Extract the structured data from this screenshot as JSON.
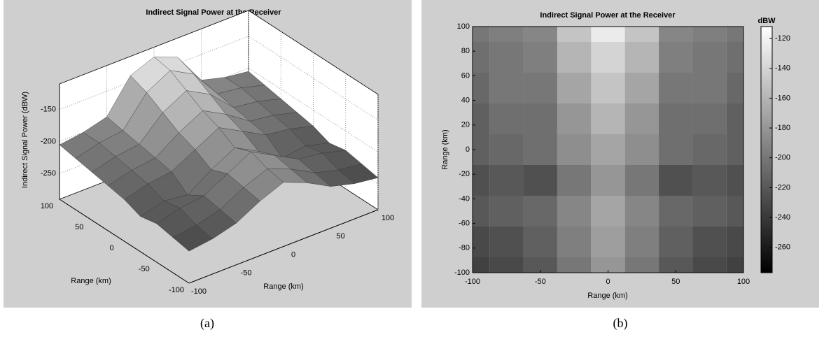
{
  "chart_data": [
    {
      "type": "surface",
      "title": "Indirect Signal Power at the Receiver",
      "xlabel": "Range (km)",
      "ylabel": "Range (km)",
      "zlabel": "Indirect Signal Power (dBW)",
      "x": [
        -100,
        -75,
        -50,
        -25,
        0,
        25,
        50,
        75,
        100
      ],
      "y": [
        -100,
        -75,
        -50,
        -25,
        0,
        25,
        50,
        75,
        100
      ],
      "z": [
        [
          -240,
          -235,
          -225,
          -205,
          -190,
          -205,
          -225,
          -235,
          -240
        ],
        [
          -235,
          -230,
          -220,
          -200,
          -185,
          -200,
          -220,
          -230,
          -235
        ],
        [
          -230,
          -220,
          -215,
          -195,
          -175,
          -195,
          -215,
          -220,
          -230
        ],
        [
          -235,
          -225,
          -230,
          -205,
          -185,
          -205,
          -230,
          -225,
          -235
        ],
        [
          -225,
          -215,
          -210,
          -190,
          -170,
          -190,
          -210,
          -215,
          -225
        ],
        [
          -220,
          -210,
          -205,
          -180,
          -160,
          -180,
          -205,
          -210,
          -220
        ],
        [
          -215,
          -205,
          -200,
          -165,
          -145,
          -165,
          -200,
          -205,
          -215
        ],
        [
          -210,
          -200,
          -195,
          -150,
          -130,
          -150,
          -195,
          -200,
          -210
        ],
        [
          -205,
          -200,
          -190,
          -140,
          -125,
          -140,
          -190,
          -200,
          -205
        ]
      ],
      "xlim": [
        -100,
        100
      ],
      "xticks": [
        -100,
        -50,
        0,
        50,
        100
      ],
      "ylim": [
        -100,
        100
      ],
      "yticks": [
        -100,
        -50,
        0,
        50,
        100
      ],
      "zlim": [
        -290,
        -110
      ],
      "zticks": [
        -250,
        -200,
        -150
      ],
      "colormap": "gray",
      "grid": true,
      "caption": "(a)"
    },
    {
      "type": "heatmap",
      "title": "Indirect Signal Power at the Receiver",
      "xlabel": "Range (km)",
      "ylabel": "Range (km)",
      "colorbar_label": "dBW",
      "x": [
        -100,
        -75,
        -50,
        -25,
        0,
        25,
        50,
        75,
        100
      ],
      "y": [
        -100,
        -75,
        -50,
        -25,
        0,
        25,
        50,
        75,
        100
      ],
      "z": [
        [
          -235,
          -230,
          -220,
          -200,
          -180,
          -200,
          -220,
          -230,
          -235
        ],
        [
          -230,
          -225,
          -215,
          -195,
          -175,
          -195,
          -215,
          -225,
          -230
        ],
        [
          -220,
          -215,
          -210,
          -190,
          -170,
          -190,
          -210,
          -215,
          -220
        ],
        [
          -225,
          -220,
          -225,
          -200,
          -180,
          -200,
          -225,
          -220,
          -225
        ],
        [
          -215,
          -210,
          -205,
          -185,
          -170,
          -185,
          -205,
          -210,
          -215
        ],
        [
          -215,
          -205,
          -205,
          -180,
          -160,
          -180,
          -205,
          -205,
          -215
        ],
        [
          -210,
          -200,
          -200,
          -170,
          -150,
          -170,
          -200,
          -200,
          -210
        ],
        [
          -205,
          -200,
          -195,
          -160,
          -140,
          -160,
          -195,
          -200,
          -205
        ],
        [
          -200,
          -195,
          -190,
          -150,
          -125,
          -150,
          -190,
          -195,
          -200
        ]
      ],
      "xlim": [
        -100,
        100
      ],
      "xticks": [
        -100,
        -50,
        0,
        50,
        100
      ],
      "ylim": [
        -100,
        100
      ],
      "yticks": [
        -100,
        -80,
        -60,
        -40,
        -20,
        0,
        20,
        40,
        60,
        80,
        100
      ],
      "clim": [
        -277,
        -112
      ],
      "cticks": [
        -260,
        -240,
        -220,
        -200,
        -180,
        -160,
        -140,
        -120
      ],
      "colormap": "gray",
      "caption": "(b)"
    }
  ]
}
